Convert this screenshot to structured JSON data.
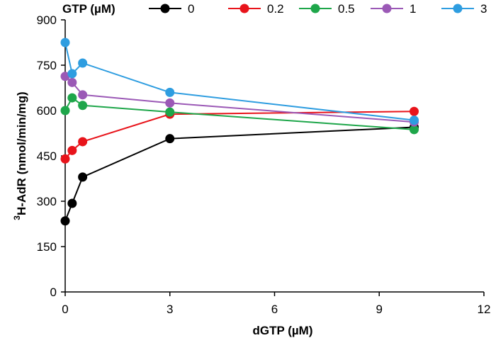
{
  "chart_data": {
    "type": "line",
    "title": "",
    "xlabel": "dGTP (µM)",
    "ylabel_superscript": "3",
    "ylabel": "H-AdR (nmol/min/mg)",
    "xlim": [
      0,
      12
    ],
    "ylim": [
      0,
      900
    ],
    "xticks": [
      0,
      3,
      6,
      9,
      12
    ],
    "yticks": [
      0,
      150,
      300,
      450,
      600,
      750,
      900
    ],
    "grid": false,
    "legend_title": "GTP  (µM)",
    "legend_position": "top",
    "x": [
      0,
      0.2,
      0.5,
      3,
      10
    ],
    "series": [
      {
        "name": "0",
        "color": "#000000",
        "values": [
          235,
          293,
          380,
          507,
          545
        ]
      },
      {
        "name": "0.2",
        "color": "#e8141b",
        "values": [
          440,
          468,
          497,
          588,
          597
        ]
      },
      {
        "name": "0.5",
        "color": "#1ea64a",
        "values": [
          600,
          642,
          617,
          595,
          537
        ]
      },
      {
        "name": "1",
        "color": "#9b59b6",
        "values": [
          713,
          693,
          652,
          625,
          562
        ]
      },
      {
        "name": "3",
        "color": "#2e9de0",
        "values": [
          825,
          722,
          757,
          660,
          568
        ]
      }
    ]
  }
}
